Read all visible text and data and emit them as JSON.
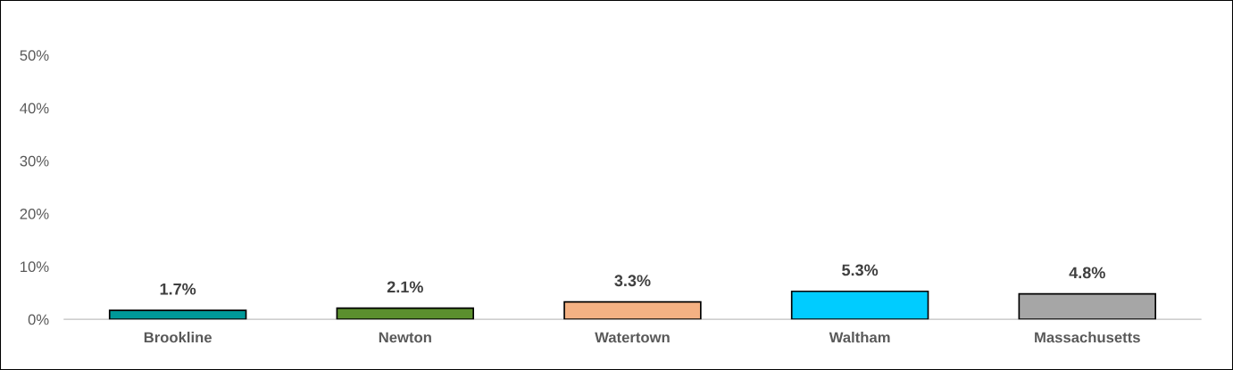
{
  "chart_data": {
    "type": "bar",
    "categories": [
      "Brookline",
      "Newton",
      "Watertown",
      "Waltham",
      "Massachusetts"
    ],
    "values": [
      1.7,
      2.1,
      3.3,
      5.3,
      4.8
    ],
    "colors": [
      "#009999",
      "#5b8f2e",
      "#f4b183",
      "#00ccff",
      "#a6a6a6"
    ],
    "value_labels": [
      "1.7%",
      "2.1%",
      "3.3%",
      "5.3%",
      "4.8%"
    ],
    "ylim": [
      0,
      50
    ],
    "yticks": [
      {
        "value": 0,
        "label": "0%"
      },
      {
        "value": 10,
        "label": "10%"
      },
      {
        "value": 20,
        "label": "20%"
      },
      {
        "value": 30,
        "label": "30%"
      },
      {
        "value": 40,
        "label": "40%"
      },
      {
        "value": 50,
        "label": "50%"
      }
    ],
    "grid": false,
    "legend": false
  }
}
